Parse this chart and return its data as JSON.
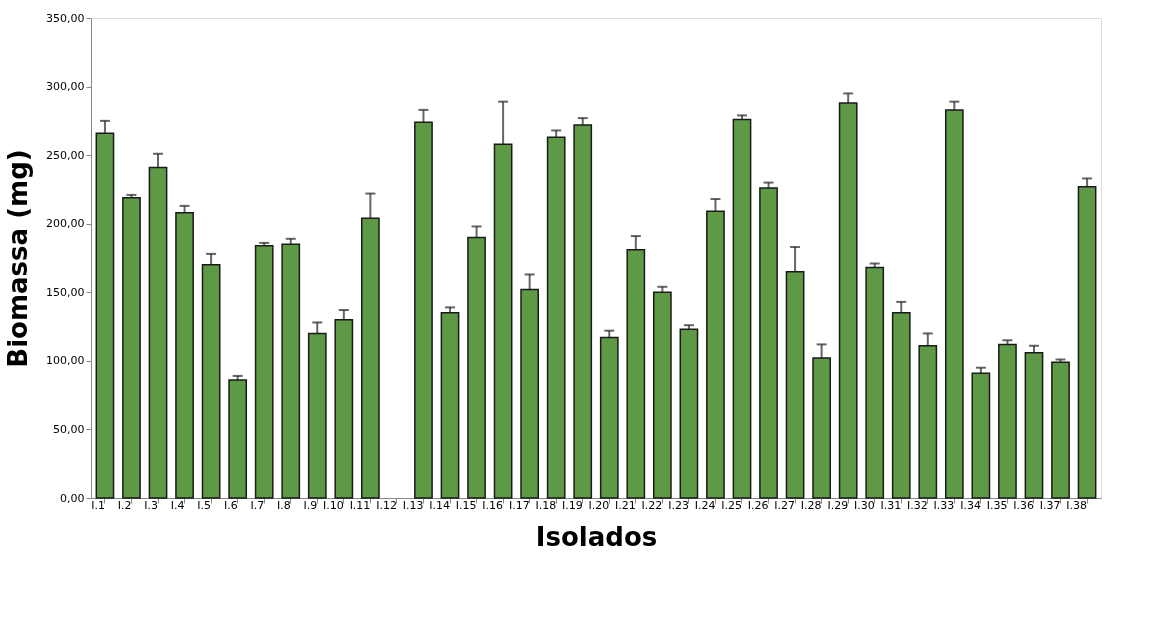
{
  "chart_data": {
    "type": "bar",
    "xlabel": "Isolados",
    "ylabel": "Biomassa (mg)",
    "categories": [
      "I.1",
      "I.2",
      "I.3",
      "I.4",
      "I.5",
      "I.6",
      "I.7",
      "I.8",
      "I.9",
      "I.10",
      "I.11",
      "I.12",
      "I.13",
      "I.14",
      "I.15",
      "I.16",
      "I.17",
      "I.18",
      "I.19",
      "I.20",
      "I.21",
      "I.22",
      "I.23",
      "I.24",
      "I.25",
      "I.26",
      "I.27",
      "I.28",
      "I.29",
      "I.30",
      "I.31",
      "I.32",
      "I.33",
      "I.34",
      "I.35",
      "I.36",
      "I.37",
      "I.38"
    ],
    "series": [
      {
        "color": "#5e9a45",
        "values": [
          266,
          219,
          241,
          208,
          170,
          86,
          184,
          185,
          120,
          130,
          204,
          null,
          274,
          135,
          190,
          258,
          152,
          263,
          272,
          117,
          181,
          150,
          123,
          209,
          276,
          226,
          165,
          102,
          288,
          168,
          135,
          111,
          283,
          91,
          112,
          106,
          99,
          227
        ],
        "errors": [
          [
            266,
            275
          ],
          [
            219,
            221
          ],
          [
            241,
            251
          ],
          [
            208,
            213
          ],
          [
            170,
            178
          ],
          [
            86,
            89
          ],
          [
            184,
            186
          ],
          [
            185,
            189
          ],
          [
            120,
            128
          ],
          [
            130,
            137
          ],
          [
            204,
            222
          ],
          null,
          [
            274,
            283
          ],
          [
            135,
            139
          ],
          [
            190,
            198
          ],
          [
            258,
            289
          ],
          [
            152,
            163
          ],
          [
            263,
            268
          ],
          [
            272,
            277
          ],
          [
            117,
            122
          ],
          [
            181,
            191
          ],
          [
            150,
            154
          ],
          [
            123,
            126
          ],
          [
            209,
            218
          ],
          [
            276,
            279
          ],
          [
            226,
            230
          ],
          [
            165,
            183
          ],
          [
            102,
            112
          ],
          [
            288,
            295
          ],
          [
            168,
            171
          ],
          [
            135,
            143
          ],
          [
            111,
            120
          ],
          [
            283,
            289
          ],
          [
            91,
            95
          ],
          [
            112,
            115
          ],
          [
            106,
            111
          ],
          [
            99,
            101
          ],
          [
            227,
            233
          ]
        ]
      }
    ],
    "ylim": [
      0,
      350
    ],
    "yticks": [
      {
        "value": 0,
        "label": "0,00"
      },
      {
        "value": 50,
        "label": "50,00"
      },
      {
        "value": 100,
        "label": "100,00"
      },
      {
        "value": 150,
        "label": "150,00"
      },
      {
        "value": 200,
        "label": "200,00"
      },
      {
        "value": 250,
        "label": "250,00"
      },
      {
        "value": 300,
        "label": "300,00"
      },
      {
        "value": 350,
        "label": "350,00"
      }
    ],
    "grid": false,
    "legend": false
  }
}
